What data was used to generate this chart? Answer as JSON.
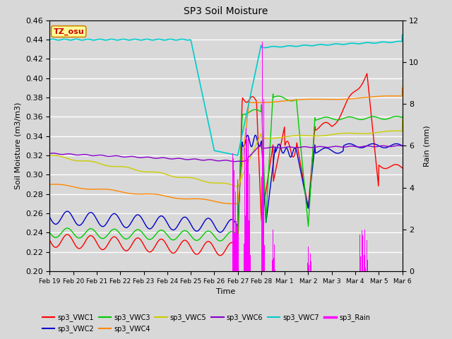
{
  "title": "SP3 Soil Moisture",
  "xlabel": "Time",
  "ylabel_left": "Soil Moisture (m3/m3)",
  "ylabel_right": "Rain (mm)",
  "ylim_left": [
    0.2,
    0.46
  ],
  "ylim_right": [
    0,
    12
  ],
  "plot_bg_color": "#d8d8d8",
  "colors": {
    "VWC1": "#ff0000",
    "VWC2": "#0000cc",
    "VWC3": "#00cc00",
    "VWC4": "#ff8800",
    "VWC5": "#cccc00",
    "VWC6": "#8800cc",
    "VWC7": "#00cccc",
    "Rain": "#ff00ff"
  },
  "tz_label": "TZ_osu",
  "tz_box_color": "#ffff99",
  "tz_box_edge": "#cc8800",
  "n_points": 800,
  "xtick_labels": [
    "Feb 19",
    "Feb 20",
    "Feb 21",
    "Feb 22",
    "Feb 23",
    "Feb 24",
    "Feb 25",
    "Feb 26",
    "Feb 27",
    "Feb 28",
    "Mar 1",
    "Mar 2",
    "Mar 3",
    "Mar 4",
    "Mar 5",
    "Mar 6"
  ],
  "figsize": [
    6.4,
    4.8
  ],
  "dpi": 100
}
